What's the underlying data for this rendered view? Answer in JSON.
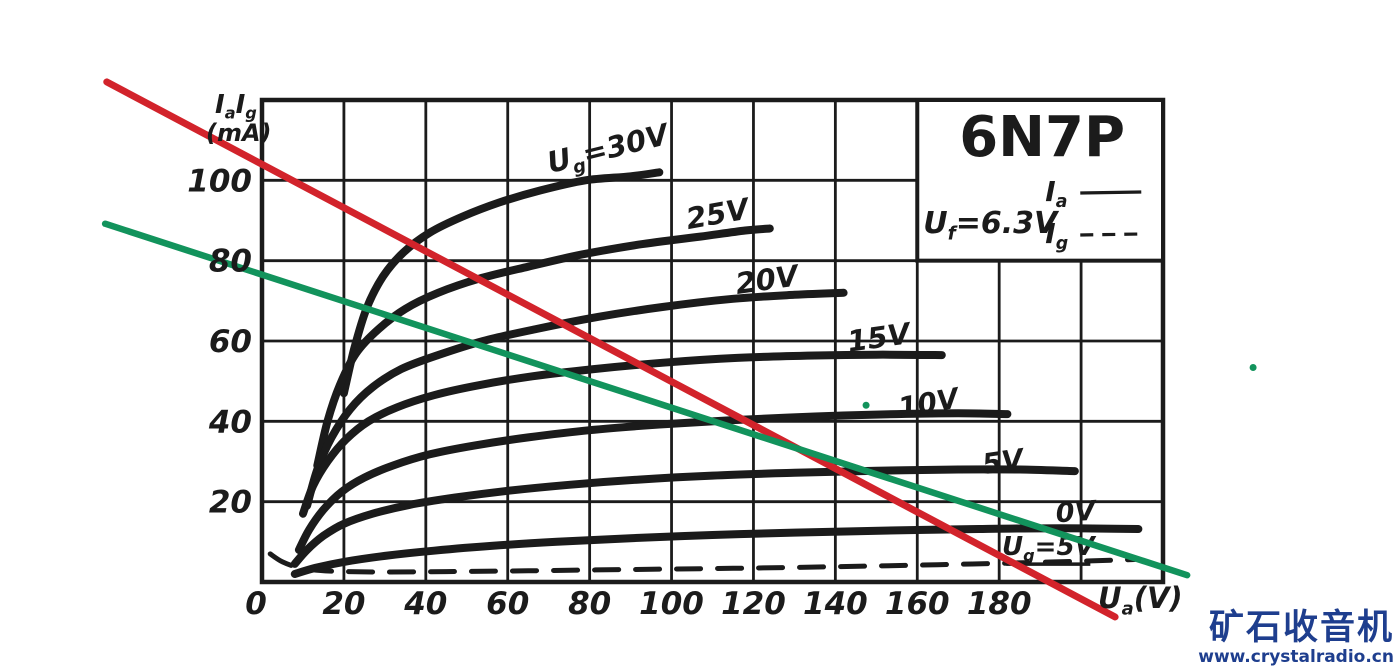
{
  "watermark": {
    "logo_text": "矿石收音机",
    "url": "www.crystalradio.cn",
    "color": "#1e3e8e"
  },
  "chart_data": {
    "type": "line",
    "title": "6N7P",
    "xlabel": "U_{a}(V)",
    "ylabel_line1": "I_{a}I_{g}",
    "ylabel_line2": "(mA)",
    "axes": {
      "x": {
        "min": 0,
        "max": 220,
        "ticks": [
          0,
          20,
          40,
          60,
          80,
          100,
          120,
          140,
          160,
          180
        ]
      },
      "y": {
        "min": 0,
        "max": 120,
        "ticks": [
          20,
          40,
          60,
          80,
          100
        ]
      }
    },
    "grid": true,
    "colors": {
      "ink": "#1b1b1b",
      "red": "#d2232b",
      "green": "#12935c"
    },
    "legend_box": {
      "title": "6N7P",
      "heater": "U_{f}=6.3V",
      "entries": [
        {
          "label": "I_{a}",
          "dashed": false
        },
        {
          "label": "I_{g}",
          "dashed": true
        }
      ]
    },
    "series": [
      {
        "name": "ug-30v",
        "label": "U_{g}=30V",
        "label_at": [
          85,
          105.5
        ],
        "label_rotate": -14,
        "label_size": 29,
        "dashed": false,
        "points": [
          [
            20,
            47
          ],
          [
            22.5,
            58
          ],
          [
            25.5,
            68
          ],
          [
            29.5,
            76
          ],
          [
            34.5,
            82
          ],
          [
            41,
            87
          ],
          [
            49,
            91
          ],
          [
            58,
            94.5
          ],
          [
            68,
            97.5
          ],
          [
            79,
            100
          ],
          [
            90,
            101
          ],
          [
            97,
            102
          ]
        ]
      },
      {
        "name": "ug-25v",
        "label": "25V",
        "label_at": [
          111.6,
          89.2
        ],
        "label_rotate": -10,
        "label_size": 29,
        "dashed": false,
        "points": [
          [
            13.5,
            29
          ],
          [
            16,
            40
          ],
          [
            19,
            49
          ],
          [
            23,
            57
          ],
          [
            28.5,
            63
          ],
          [
            35,
            68
          ],
          [
            43,
            72
          ],
          [
            53,
            75.5
          ],
          [
            65,
            78.5
          ],
          [
            78,
            81.5
          ],
          [
            92,
            84
          ],
          [
            107,
            86
          ],
          [
            118,
            87.5
          ],
          [
            124,
            88
          ]
        ]
      },
      {
        "name": "ug-20v",
        "label": "20V",
        "label_at": [
          123.6,
          72.8
        ],
        "label_rotate": -8,
        "label_size": 29,
        "dashed": false,
        "points": [
          [
            11,
            19
          ],
          [
            13.5,
            28
          ],
          [
            17,
            36
          ],
          [
            21.5,
            43
          ],
          [
            27,
            48.5
          ],
          [
            34,
            53
          ],
          [
            43,
            56.5
          ],
          [
            54,
            60
          ],
          [
            67,
            63
          ],
          [
            82,
            66
          ],
          [
            98,
            68.5
          ],
          [
            115,
            70.5
          ],
          [
            130,
            71.5
          ],
          [
            142,
            72
          ]
        ]
      },
      {
        "name": "ug-15v",
        "label": "15V",
        "label_at": [
          150.9,
          58.4
        ],
        "label_rotate": -8,
        "label_size": 29,
        "dashed": false,
        "points": [
          [
            10,
            17
          ],
          [
            12.5,
            24
          ],
          [
            16,
            30
          ],
          [
            20.5,
            35.5
          ],
          [
            26,
            40
          ],
          [
            33,
            43.5
          ],
          [
            42,
            46.5
          ],
          [
            53,
            49
          ],
          [
            66,
            51.2
          ],
          [
            81,
            53
          ],
          [
            98,
            54.6
          ],
          [
            116,
            55.8
          ],
          [
            135,
            56.4
          ],
          [
            150,
            56.6
          ],
          [
            166,
            56.5
          ]
        ]
      },
      {
        "name": "ug-10v",
        "label": "10V",
        "label_at": [
          163.1,
          42.2
        ],
        "label_rotate": -10,
        "label_size": 28,
        "dashed": false,
        "points": [
          [
            9,
            8
          ],
          [
            11.5,
            13
          ],
          [
            15,
            18
          ],
          [
            19.5,
            22.5
          ],
          [
            25,
            26
          ],
          [
            32,
            29
          ],
          [
            41,
            31.8
          ],
          [
            52,
            34
          ],
          [
            65,
            36
          ],
          [
            80,
            37.8
          ],
          [
            97,
            39.2
          ],
          [
            115,
            40.3
          ],
          [
            135,
            41.2
          ],
          [
            155,
            41.8
          ],
          [
            170,
            42
          ],
          [
            182,
            41.8
          ]
        ]
      },
      {
        "name": "ug-5v",
        "label": "5V",
        "label_at": [
          181.2,
          27.6
        ],
        "label_rotate": -8,
        "label_size": 28,
        "dashed": false,
        "points": [
          [
            8,
            4.5
          ],
          [
            11,
            8
          ],
          [
            15,
            11.5
          ],
          [
            20,
            14.5
          ],
          [
            27,
            17
          ],
          [
            36,
            19.2
          ],
          [
            47,
            21
          ],
          [
            60,
            22.7
          ],
          [
            75,
            24.2
          ],
          [
            92,
            25.5
          ],
          [
            110,
            26.5
          ],
          [
            130,
            27.2
          ],
          [
            150,
            27.7
          ],
          [
            170,
            28
          ],
          [
            185,
            28
          ],
          [
            198.5,
            27.6
          ]
        ]
      },
      {
        "name": "ug-0v",
        "label": "0V",
        "label_at": [
          198.8,
          15.2
        ],
        "label_rotate": -4,
        "label_size": 27,
        "dashed": false,
        "points": [
          [
            8,
            2
          ],
          [
            13,
            3.5
          ],
          [
            20,
            5
          ],
          [
            30,
            6.5
          ],
          [
            42,
            7.8
          ],
          [
            56,
            9
          ],
          [
            72,
            10
          ],
          [
            90,
            10.9
          ],
          [
            110,
            11.7
          ],
          [
            130,
            12.3
          ],
          [
            152,
            12.8
          ],
          [
            175,
            13.2
          ],
          [
            195,
            13.4
          ],
          [
            214,
            13.2
          ]
        ]
      },
      {
        "name": "ig-ug-5v",
        "label": "U_{g}=5V",
        "label_at": [
          192,
          6.7
        ],
        "label_rotate": 0,
        "label_size": 26,
        "label_underline": true,
        "dashed": true,
        "points": [
          [
            2,
            7
          ],
          [
            5,
            5
          ],
          [
            9,
            3.6
          ],
          [
            14,
            2.9
          ],
          [
            20,
            2.6
          ],
          [
            30,
            2.5
          ],
          [
            45,
            2.6
          ],
          [
            65,
            2.8
          ],
          [
            90,
            3.1
          ],
          [
            115,
            3.4
          ],
          [
            140,
            3.8
          ],
          [
            165,
            4.3
          ],
          [
            190,
            4.9
          ],
          [
            213,
            5.6
          ]
        ]
      }
    ],
    "overlay_lines": [
      {
        "name": "red-load-line",
        "color": "#d2232b",
        "width": 7,
        "from": [
          -37.9,
          124.5
        ],
        "to": [
          208.3,
          -8.7
        ]
      },
      {
        "name": "green-load-line",
        "color": "#12935c",
        "width": 6.5,
        "from": [
          -38.3,
          89.2
        ],
        "to": [
          225.9,
          1.7
        ]
      }
    ],
    "markers": [
      {
        "name": "green-dot-on-chart",
        "color": "#12935c",
        "r": 3.5,
        "at": [
          147.5,
          44
        ]
      },
      {
        "name": "green-dot-right-margin",
        "color": "#12935c",
        "r": 3.5,
        "at": [
          242,
          53.4
        ]
      }
    ],
    "origin_label": "0"
  }
}
